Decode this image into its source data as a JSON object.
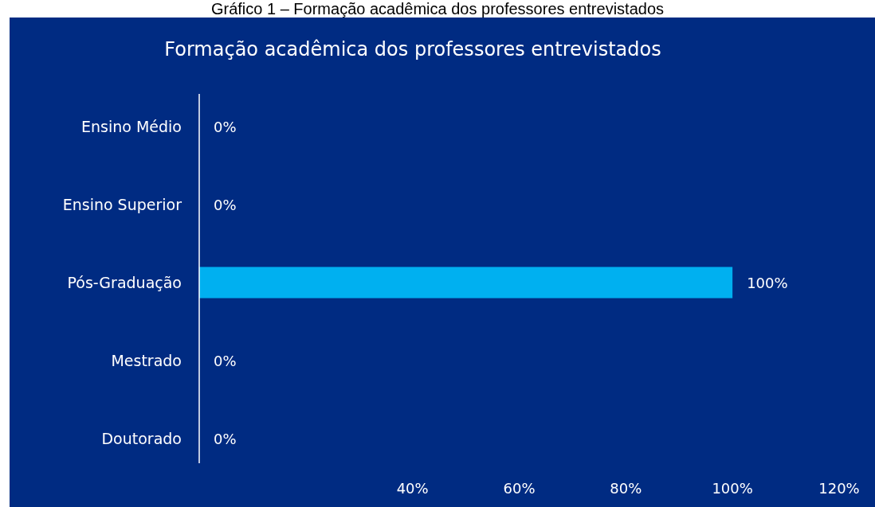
{
  "chart_data": {
    "type": "bar",
    "orientation": "horizontal",
    "title": "Formação acadêmica dos professores entrevistados",
    "annotations": [
      "Gráfico 1 – Formação acadêmica dos professores entrevistados"
    ],
    "categories": [
      "Ensino Médio",
      "Ensino Superior",
      "Pós-Graduação",
      "Mestrado",
      "Doutorado"
    ],
    "values": [
      0,
      0,
      100,
      0,
      0
    ],
    "value_labels": [
      "0%",
      "0%",
      "100%",
      "0%",
      "0%"
    ],
    "color": "#00b0f0",
    "xlim": [
      0,
      120
    ],
    "xticks": [
      {
        "value": 40,
        "label": "40%"
      },
      {
        "value": 60,
        "label": "60%"
      },
      {
        "value": 80,
        "label": "80%"
      },
      {
        "value": 100,
        "label": "100%"
      },
      {
        "value": 120,
        "label": "120%"
      }
    ],
    "grid": false
  }
}
